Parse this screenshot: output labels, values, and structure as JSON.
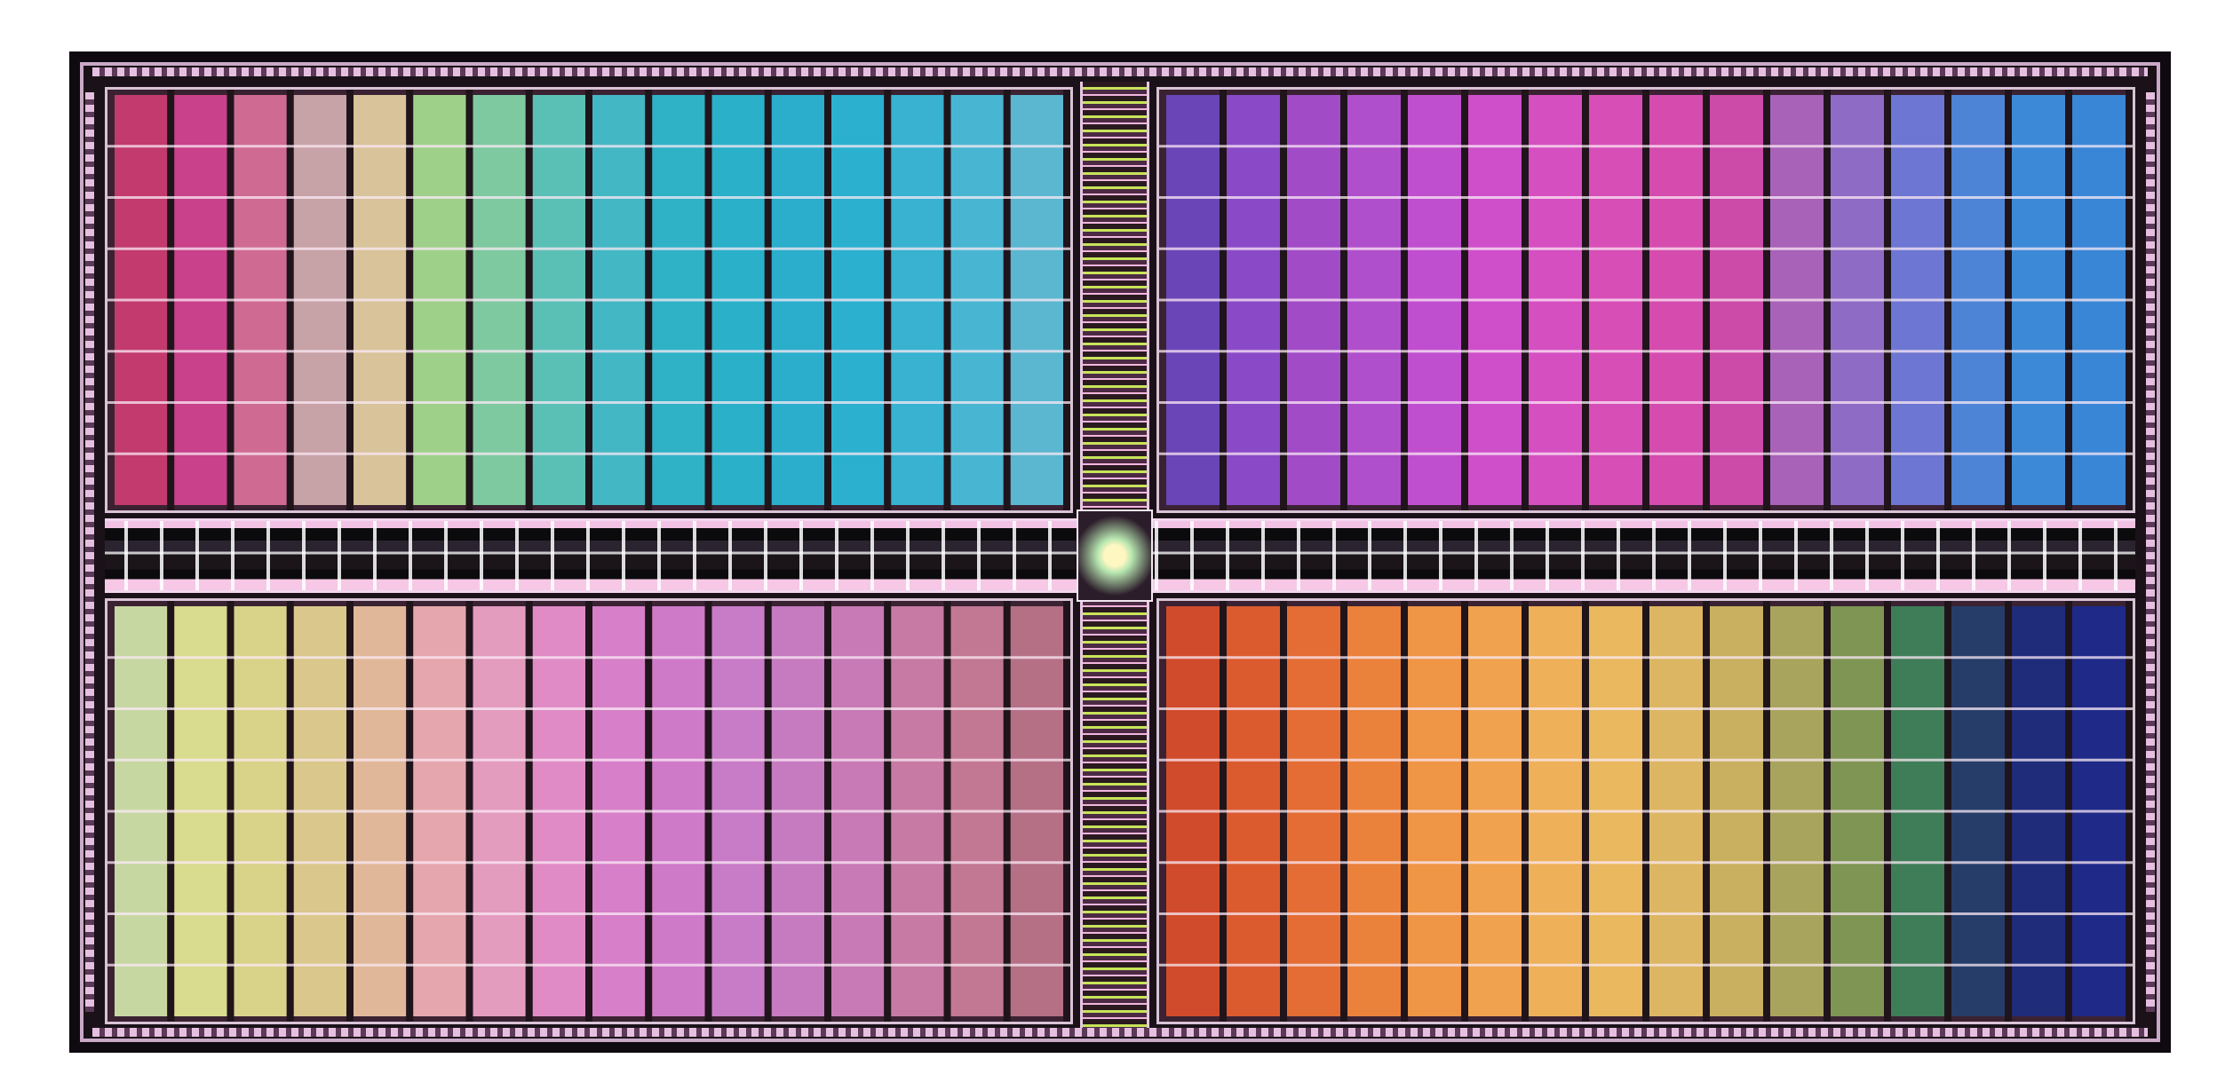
{
  "image": {
    "subject": "die-photo",
    "quadrants": [
      {
        "name": "top-left",
        "colors": [
          "#c23a6e",
          "#c9418a",
          "#cf6b93",
          "#c7a2a6",
          "#d8c39a",
          "#9fd08a",
          "#7fc9a0",
          "#5ac0b6",
          "#44b7c4",
          "#2fb2c6",
          "#2ab0c9",
          "#2aaecc",
          "#2cb0cf",
          "#38b2d0",
          "#48b6d2",
          "#5ab7cf"
        ]
      },
      {
        "name": "top-right",
        "colors": [
          "#6a45b7",
          "#8a4ac8",
          "#a24bc7",
          "#b04fcc",
          "#c04fcf",
          "#cf4fcb",
          "#d64fc1",
          "#d84eb7",
          "#d54cae",
          "#cc4aa8",
          "#a862b7",
          "#8e6cc5",
          "#6d76d2",
          "#4e84d6",
          "#3c8ad7",
          "#3a86d6"
        ]
      },
      {
        "name": "bottom-left",
        "colors": [
          "#c7d7a2",
          "#d9dc8f",
          "#d9d38a",
          "#dac78b",
          "#e0b899",
          "#e6a6ad",
          "#e39bbe",
          "#e08bc6",
          "#d77fc8",
          "#cf7ac9",
          "#c87bc7",
          "#c67ac0",
          "#c77ab5",
          "#c67aa4",
          "#c27892",
          "#b57086"
        ]
      },
      {
        "name": "bottom-right",
        "colors": [
          "#d04b2b",
          "#db5b2f",
          "#e36d34",
          "#ea823c",
          "#ee9546",
          "#f0a24f",
          "#eeb058",
          "#e9b85f",
          "#dcb663",
          "#c8b060",
          "#a9a45d",
          "#7f9553",
          "#3f7c58",
          "#263d6a",
          "#1f2c7a",
          "#1f2a88"
        ]
      }
    ]
  }
}
